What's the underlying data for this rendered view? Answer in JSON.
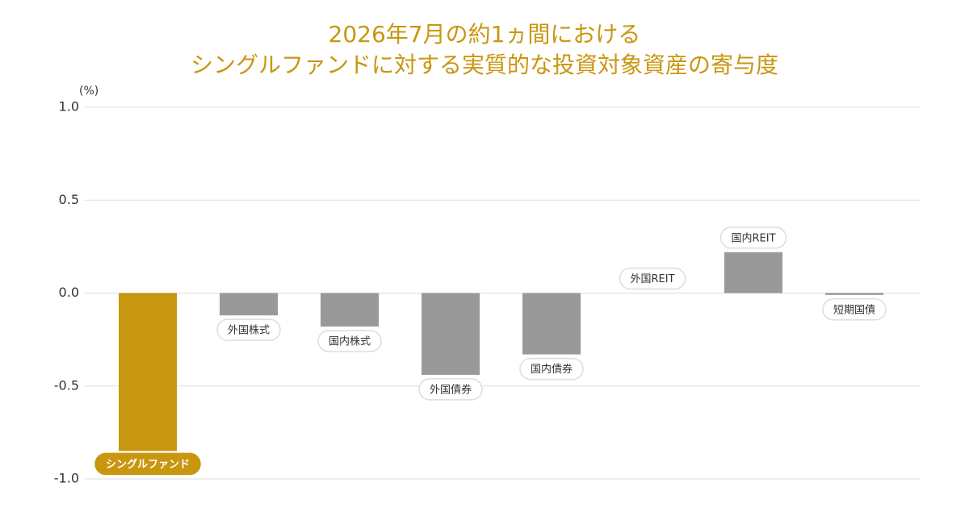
{
  "chart_data": {
    "type": "bar",
    "title": [
      "2026年7月の約1ヵ間における",
      "シングルファンドに対する実質的な投資対象資産の寄与度"
    ],
    "y_unit": "(%)",
    "categories": [
      "シングルファンド",
      "外国株式",
      "国内株式",
      "外国債券",
      "国内債券",
      "外国REIT",
      "国内REIT",
      "短期国債"
    ],
    "values": [
      -0.85,
      -0.12,
      -0.18,
      -0.44,
      -0.33,
      0,
      0.22,
      -0.01
    ],
    "colors": [
      "#c9960f",
      "#999999",
      "#999999",
      "#999999",
      "#999999",
      "#999999",
      "#999999",
      "#999999"
    ],
    "ylim": [
      -1.0,
      1.0
    ],
    "yticks": [
      {
        "value": 1.0,
        "label": "1.0"
      },
      {
        "value": 0.5,
        "label": "0.5"
      },
      {
        "value": 0,
        "label": "0.0"
      },
      {
        "value": -0.5,
        "label": "-0.5"
      },
      {
        "value": -1.0,
        "label": "-1.0"
      }
    ],
    "grid": true
  }
}
